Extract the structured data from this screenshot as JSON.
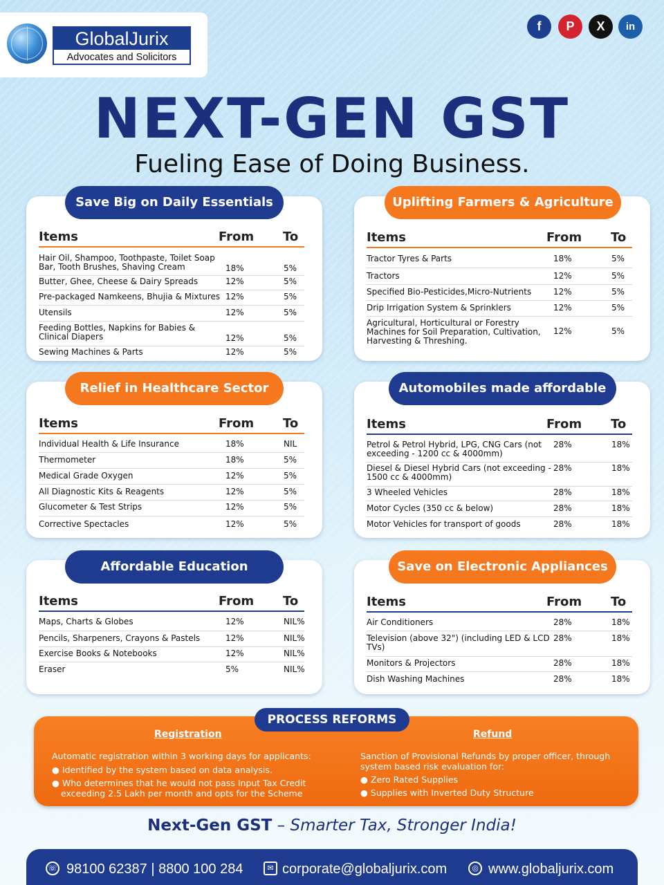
{
  "brand": {
    "name": "GlobalJurix",
    "tagline": "Advocates and Solicitors"
  },
  "social": [
    {
      "icon": "facebook-icon",
      "glyph": "f"
    },
    {
      "icon": "pinterest-icon",
      "glyph": "P"
    },
    {
      "icon": "x-icon",
      "glyph": "X"
    },
    {
      "icon": "linkedin-icon",
      "glyph": "in"
    }
  ],
  "headline": "NEXT-GEN GST",
  "subheadline": "Fueling Ease of Doing Business.",
  "columns": {
    "items": "Items",
    "from": "From",
    "to": "To"
  },
  "colors": {
    "navy": "#1f3b8f",
    "orange": "#f5781e",
    "headline": "#1b2f7c"
  },
  "sections": [
    {
      "title": "Save Big on Daily Essentials",
      "rows": [
        {
          "item": "Hair Oil, Shampoo, Toothpaste, Toilet Soap Bar, Tooth Brushes, Shaving Cream",
          "from": "18%",
          "to": "5%"
        },
        {
          "item": "Butter, Ghee, Cheese & Dairy Spreads",
          "from": "12%",
          "to": "5%"
        },
        {
          "item": "Pre-packaged Namkeens, Bhujia & Mixtures",
          "from": "12%",
          "to": "5%"
        },
        {
          "item": "Utensils",
          "from": "12%",
          "to": "5%"
        },
        {
          "item": "Feeding Bottles, Napkins for Babies & Clinical Diapers",
          "from": "12%",
          "to": "5%"
        },
        {
          "item": "Sewing Machines & Parts",
          "from": "12%",
          "to": "5%"
        }
      ]
    },
    {
      "title": "Uplifting Farmers & Agriculture",
      "rows": [
        {
          "item": "Tractor Tyres & Parts",
          "from": "18%",
          "to": "5%"
        },
        {
          "item": "Tractors",
          "from": "12%",
          "to": "5%"
        },
        {
          "item": "Specified Bio-Pesticides,Micro-Nutrients",
          "from": "12%",
          "to": "5%"
        },
        {
          "item": "Drip Irrigation System & Sprinklers",
          "from": "12%",
          "to": "5%"
        },
        {
          "item": "Agricultural, Horticultural or Forestry Machines for Soil Preparation, Cultivation, Harvesting & Threshing.",
          "from": "12%",
          "to": "5%"
        }
      ]
    },
    {
      "title": "Relief in Healthcare Sector",
      "rows": [
        {
          "item": "Individual Health & Life Insurance",
          "from": "18%",
          "to": "NIL"
        },
        {
          "item": "Thermometer",
          "from": "18%",
          "to": "5%"
        },
        {
          "item": "Medical Grade Oxygen",
          "from": "12%",
          "to": "5%"
        },
        {
          "item": "All Diagnostic Kits & Reagents",
          "from": "12%",
          "to": "5%"
        },
        {
          "item": "Glucometer & Test Strips",
          "from": "12%",
          "to": "5%"
        },
        {
          "item": "Corrective Spectacles",
          "from": "12%",
          "to": "5%"
        }
      ]
    },
    {
      "title": "Automobiles made affordable",
      "rows": [
        {
          "item": "Petrol & Petrol Hybrid, LPG, CNG Cars (not exceeding - 1200 cc & 4000mm)",
          "from": "28%",
          "to": "18%"
        },
        {
          "item": "Diesel & Diesel Hybrid Cars (not exceeding - 1500 cc & 4000mm)",
          "from": "28%",
          "to": "18%"
        },
        {
          "item": "3 Wheeled Vehicles",
          "from": "28%",
          "to": "18%"
        },
        {
          "item": "Motor Cycles (350 cc & below)",
          "from": "28%",
          "to": "18%"
        },
        {
          "item": "Motor Vehicles for transport of goods",
          "from": "28%",
          "to": "18%"
        }
      ]
    },
    {
      "title": "Affordable Education",
      "rows": [
        {
          "item": "Maps, Charts & Globes",
          "from": "12%",
          "to": "NIL%"
        },
        {
          "item": "Pencils, Sharpeners, Crayons & Pastels",
          "from": "12%",
          "to": "NIL%"
        },
        {
          "item": "Exercise Books & Notebooks",
          "from": "12%",
          "to": "NIL%"
        },
        {
          "item": "Eraser",
          "from": "5%",
          "to": "NIL%"
        }
      ]
    },
    {
      "title": "Save on Electronic Appliances",
      "rows": [
        {
          "item": "Air Conditioners",
          "from": "28%",
          "to": "18%"
        },
        {
          "item": "Television (above 32\") (including LED & LCD TVs)",
          "from": "28%",
          "to": "18%"
        },
        {
          "item": "Monitors & Projectors",
          "from": "28%",
          "to": "18%"
        },
        {
          "item": "Dish Washing Machines",
          "from": "28%",
          "to": "18%"
        }
      ]
    }
  ],
  "reforms": {
    "title": "PROCESS REFORMS",
    "registration": {
      "heading": "Registration",
      "intro": "Automatic registration within 3 working days for applicants:",
      "bullets": [
        "Identified by the system based on data analysis.",
        "Who determines that he would not pass Input Tax Credit exceeding 2.5 Lakh per month and opts for the Scheme"
      ]
    },
    "refund": {
      "heading": "Refund",
      "intro": "Sanction of Provisional Refunds by proper officer, through system based risk evaluation for:",
      "bullets": [
        "Zero Rated Supplies",
        "Supplies with Inverted Duty Structure"
      ]
    }
  },
  "tagline": {
    "bold": "Next-Gen GST",
    "dash": " – ",
    "italic": "Smarter Tax, Stronger India!"
  },
  "contact": {
    "phone": "98100 62387 | 8800 100 284",
    "email": "corporate@globaljurix.com",
    "website": "www.globaljurix.com"
  }
}
